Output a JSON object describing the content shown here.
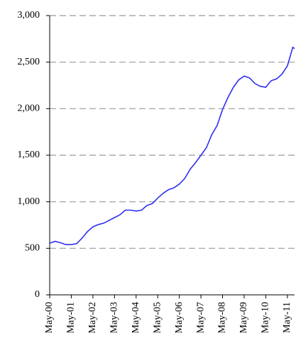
{
  "chart_data": {
    "type": "line",
    "x": [
      0,
      3,
      6,
      9,
      12,
      15,
      18,
      21,
      24,
      27,
      30,
      33,
      36,
      39,
      42,
      45,
      48,
      51,
      54,
      57,
      60,
      63,
      66,
      69,
      72,
      75,
      78,
      81,
      84,
      87,
      90,
      93,
      96,
      99,
      102,
      105,
      108,
      111,
      114,
      117,
      120,
      123,
      126,
      129,
      132,
      135,
      136
    ],
    "values": [
      555,
      575,
      560,
      540,
      540,
      550,
      610,
      680,
      730,
      755,
      770,
      800,
      830,
      860,
      910,
      910,
      900,
      910,
      960,
      980,
      1040,
      1090,
      1130,
      1150,
      1190,
      1250,
      1350,
      1420,
      1500,
      1580,
      1720,
      1820,
      1990,
      2120,
      2230,
      2310,
      2350,
      2330,
      2270,
      2240,
      2230,
      2300,
      2320,
      2370,
      2460,
      2660,
      2645
    ],
    "color": "#2f2ff0",
    "xlim": [
      0,
      136
    ],
    "xticks": [
      {
        "value": 0,
        "label": "May-00"
      },
      {
        "value": 12,
        "label": "May-01"
      },
      {
        "value": 24,
        "label": "May-02"
      },
      {
        "value": 36,
        "label": "May-03"
      },
      {
        "value": 48,
        "label": "May-04"
      },
      {
        "value": 60,
        "label": "May-05"
      },
      {
        "value": 72,
        "label": "May-06"
      },
      {
        "value": 84,
        "label": "May-07"
      },
      {
        "value": 96,
        "label": "May-08"
      },
      {
        "value": 108,
        "label": "May-09"
      },
      {
        "value": 120,
        "label": "May-10"
      },
      {
        "value": 132,
        "label": "May-11"
      }
    ],
    "ylim": [
      0,
      3000
    ],
    "yticks": [
      0,
      500,
      {
        "value": 1000,
        "label": "1,000"
      },
      {
        "value": 1500,
        "label": "1,500"
      },
      {
        "value": 2000,
        "label": "2,000"
      },
      {
        "value": 2500,
        "label": "2,500"
      },
      {
        "value": 3000,
        "label": "3,000"
      }
    ],
    "grid": true
  }
}
